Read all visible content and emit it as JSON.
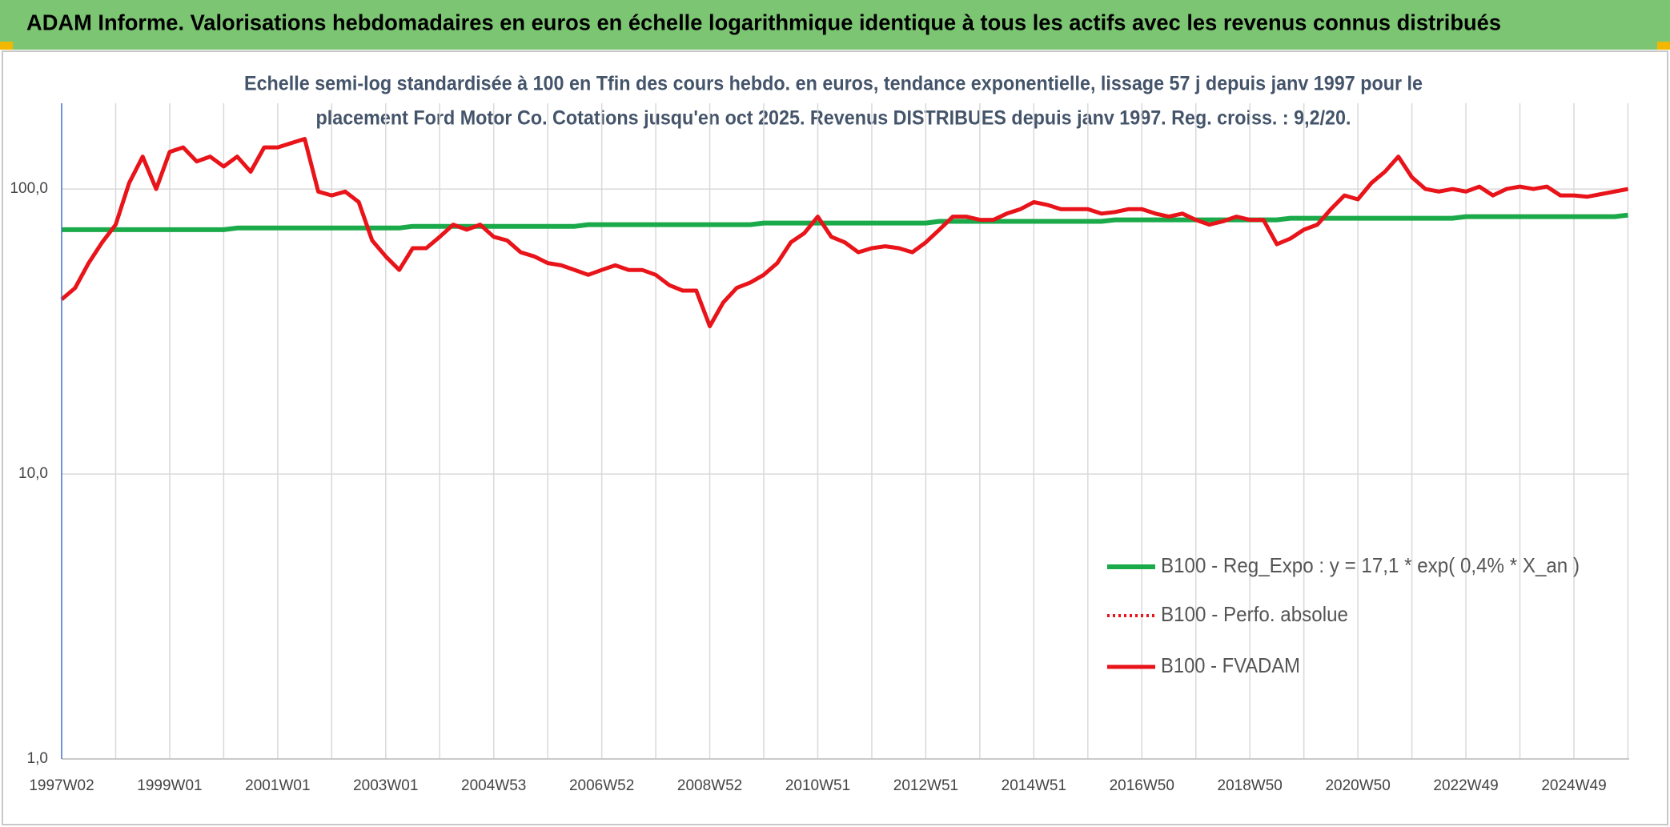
{
  "chart_data": {
    "type": "line",
    "title": "ADAM Informe. Valorisations hebdomadaires en euros en échelle logarithmique identique à tous les actifs avec les revenus connus distribués",
    "subtitle": [
      "Echelle semi-log standardisée à 100 en Tfin des cours hebdo. en euros, tendance exponentielle, lissage 57 j depuis janv 1997 pour le",
      "placement Ford Motor Co. Cotations jusqu'en oct 2025. Revenus DISTRIBUES depuis janv 1997. Reg. croiss. : 9,2/20."
    ],
    "log_scale": true,
    "grid": true,
    "legend": "lower right",
    "ylim": [
      1,
      200
    ],
    "yticks": [
      {
        "value": 1,
        "label": "1,0"
      },
      {
        "value": 10,
        "label": "10,0"
      },
      {
        "value": 100,
        "label": "100,0"
      }
    ],
    "categories": [
      "1997W02",
      null,
      null,
      null,
      null,
      null,
      null,
      null,
      "1999W01",
      null,
      null,
      null,
      null,
      null,
      null,
      null,
      "2001W01",
      null,
      null,
      null,
      null,
      null,
      null,
      null,
      "2003W01",
      null,
      null,
      null,
      null,
      null,
      null,
      null,
      "2004W53",
      null,
      null,
      null,
      null,
      null,
      null,
      null,
      "2006W52",
      null,
      null,
      null,
      null,
      null,
      null,
      null,
      "2008W52",
      null,
      null,
      null,
      null,
      null,
      null,
      null,
      "2010W51",
      null,
      null,
      null,
      null,
      null,
      null,
      null,
      "2012W51",
      null,
      null,
      null,
      null,
      null,
      null,
      null,
      "2014W51",
      null,
      null,
      null,
      null,
      null,
      null,
      null,
      "2016W50",
      null,
      null,
      null,
      null,
      null,
      null,
      null,
      "2018W50",
      null,
      null,
      null,
      null,
      null,
      null,
      null,
      "2020W50",
      null,
      null,
      null,
      null,
      null,
      null,
      null,
      "2022W49",
      null,
      null,
      null,
      null,
      null,
      null,
      null,
      "2024W49",
      null,
      null,
      null,
      null
    ],
    "series": [
      {
        "name": "B100 - Reg_Expo : y = 17,1 * exp( 0,4% *  X_an )",
        "color": "#1aaa4a",
        "style": "solid",
        "values": [
          72,
          72,
          72,
          72,
          72,
          72,
          72,
          72,
          72,
          72,
          72,
          72,
          72,
          73,
          73,
          73,
          73,
          73,
          73,
          73,
          73,
          73,
          73,
          73,
          73,
          73,
          74,
          74,
          74,
          74,
          74,
          74,
          74,
          74,
          74,
          74,
          74,
          74,
          74,
          75,
          75,
          75,
          75,
          75,
          75,
          75,
          75,
          75,
          75,
          75,
          75,
          75,
          76,
          76,
          76,
          76,
          76,
          76,
          76,
          76,
          76,
          76,
          76,
          76,
          76,
          77,
          77,
          77,
          77,
          77,
          77,
          77,
          77,
          77,
          77,
          77,
          77,
          77,
          78,
          78,
          78,
          78,
          78,
          78,
          78,
          78,
          78,
          78,
          78,
          78,
          78,
          79,
          79,
          79,
          79,
          79,
          79,
          79,
          79,
          79,
          79,
          79,
          79,
          79,
          80,
          80,
          80,
          80,
          80,
          80,
          80,
          80,
          80,
          80,
          80,
          80,
          81
        ]
      },
      {
        "name": "B100 - Perfo. absolue",
        "color": "#e8141a",
        "style": "dotted",
        "values": [
          41,
          45,
          55,
          65,
          75,
          105,
          130,
          100,
          135,
          140,
          125,
          130,
          120,
          130,
          115,
          140,
          140,
          145,
          150,
          98,
          95,
          98,
          90,
          66,
          58,
          52,
          62,
          62,
          68,
          75,
          72,
          75,
          68,
          66,
          60,
          58,
          55,
          54,
          52,
          50,
          52,
          54,
          52,
          52,
          50,
          46,
          44,
          44,
          33,
          40,
          45,
          47,
          50,
          55,
          65,
          70,
          80,
          68,
          65,
          60,
          62,
          63,
          62,
          60,
          65,
          72,
          80,
          80,
          78,
          78,
          82,
          85,
          90,
          88,
          85,
          85,
          85,
          82,
          83,
          85,
          85,
          82,
          80,
          82,
          78,
          75,
          77,
          80,
          78,
          78,
          64,
          67,
          72,
          75,
          85,
          95,
          92,
          105,
          115,
          130,
          110,
          100,
          98,
          100,
          98,
          102,
          95,
          100,
          102,
          100,
          102,
          95,
          95,
          94,
          96,
          98,
          100
        ]
      },
      {
        "name": "B100 - FVADAM",
        "color": "#e8141a",
        "style": "solid",
        "values": [
          41,
          45,
          55,
          65,
          75,
          105,
          130,
          100,
          135,
          140,
          125,
          130,
          120,
          130,
          115,
          140,
          140,
          145,
          150,
          98,
          95,
          98,
          90,
          66,
          58,
          52,
          62,
          62,
          68,
          75,
          72,
          75,
          68,
          66,
          60,
          58,
          55,
          54,
          52,
          50,
          52,
          54,
          52,
          52,
          50,
          46,
          44,
          44,
          33,
          40,
          45,
          47,
          50,
          55,
          65,
          70,
          80,
          68,
          65,
          60,
          62,
          63,
          62,
          60,
          65,
          72,
          80,
          80,
          78,
          78,
          82,
          85,
          90,
          88,
          85,
          85,
          85,
          82,
          83,
          85,
          85,
          82,
          80,
          82,
          78,
          75,
          77,
          80,
          78,
          78,
          64,
          67,
          72,
          75,
          85,
          95,
          92,
          105,
          115,
          130,
          110,
          100,
          98,
          100,
          98,
          102,
          95,
          100,
          102,
          100,
          102,
          95,
          95,
          94,
          96,
          98,
          100
        ]
      }
    ]
  }
}
